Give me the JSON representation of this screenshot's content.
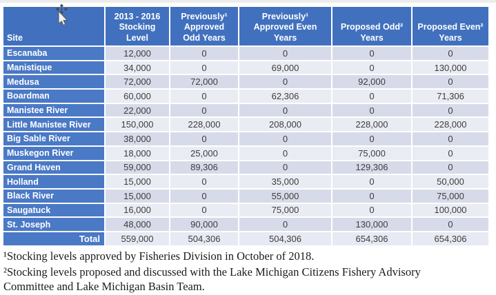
{
  "page": {
    "background": "#ffffff"
  },
  "colors": {
    "header_blue": "#4171BE",
    "site_blue": "#4A79C6",
    "band_dark": "#D7DBE9",
    "band_light": "#EAECF4",
    "total_bg": "#E7EAF2",
    "num_color": "#3C3C3C"
  },
  "icons": {
    "mouse_cursor": "move-pointer-cursor"
  },
  "table": {
    "columns": [
      {
        "key": "site",
        "label": "Site"
      },
      {
        "key": "stocking_level",
        "label": "2013 - 2016\nStocking\nLevel"
      },
      {
        "key": "prev_approved_odd",
        "label": "Previously¹\nApproved\nOdd Years"
      },
      {
        "key": "prev_approved_even",
        "label": "Previously¹\nApproved Even\nYears"
      },
      {
        "key": "proposed_odd",
        "label": "Proposed Odd²\nYears"
      },
      {
        "key": "proposed_even",
        "label": "Proposed Even²\nYears"
      }
    ],
    "rows": [
      [
        "Escanaba",
        "12,000",
        "0",
        "0",
        "0",
        "0"
      ],
      [
        "Manistique",
        "34,000",
        "0",
        "69,000",
        "0",
        "130,000"
      ],
      [
        "Medusa",
        "72,000",
        "72,000",
        "0",
        "92,000",
        "0"
      ],
      [
        "Boardman",
        "60,000",
        "0",
        "62,306",
        "0",
        "71,306"
      ],
      [
        "Manistee River",
        "22,000",
        "0",
        "0",
        "0",
        "0"
      ],
      [
        "Little Manistee River",
        "150,000",
        "228,000",
        "208,000",
        "228,000",
        "228,000"
      ],
      [
        "Big Sable River",
        "38,000",
        "0",
        "0",
        "0",
        "0"
      ],
      [
        "Muskegon River",
        "18,000",
        "25,000",
        "0",
        "75,000",
        "0"
      ],
      [
        "Grand Haven",
        "59,000",
        "89,306",
        "0",
        "129,306",
        "0"
      ],
      [
        "Holland",
        "15,000",
        "0",
        "35,000",
        "0",
        "50,000"
      ],
      [
        "Black River",
        "15,000",
        "0",
        "55,000",
        "0",
        "75,000"
      ],
      [
        "Saugatuck",
        "16,000",
        "0",
        "75,000",
        "0",
        "100,000"
      ],
      [
        "St. Joseph",
        "48,000",
        "90,000",
        "0",
        "130,000",
        "0"
      ]
    ],
    "total_row": [
      "Total",
      "559,000",
      "504,306",
      "504,306",
      "654,306",
      "654,306"
    ]
  },
  "footnotes": [
    "¹Stocking levels approved by Fisheries Division in October of 2018.",
    "²Stocking levels proposed and discussed with the Lake Michigan Citizens Fishery Advisory Committee and Lake Michigan Basin Team."
  ]
}
